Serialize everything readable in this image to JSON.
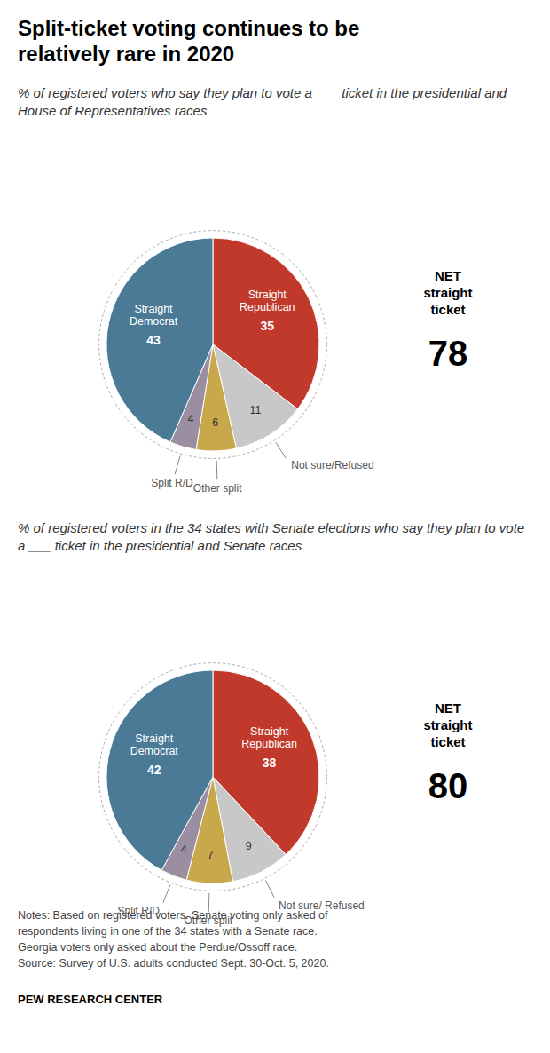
{
  "title": "Split-ticket voting continues to be\nrelatively rare in 2020",
  "chart_data": [
    {
      "type": "pie",
      "subtitle": "% of registered voters who say they plan to vote a ___ ticket in the presidential and House of Representatives races",
      "categories": [
        "Straight Republican",
        "Not sure/Refused",
        "Other split",
        "Split R/D",
        "Straight Democrat"
      ],
      "values": [
        35,
        11,
        6,
        4,
        43
      ],
      "colors": [
        "#c0392b",
        "#c8c8c8",
        "#c8a84b",
        "#9b8ea0",
        "#4a7a96"
      ],
      "data_labels": true,
      "annotations": [
        "NET\nstraight\nticket",
        "78"
      ]
    },
    {
      "type": "pie",
      "subtitle": "% of registered voters in the 34 states with Senate elections who say they plan to vote a ___ ticket in the presidential and Senate races",
      "categories": [
        "Straight Republican",
        "Not sure/ Refused",
        "Other split",
        "Split R/D",
        "Straight Democrat"
      ],
      "values": [
        38,
        9,
        7,
        4,
        42
      ],
      "colors": [
        "#c0392b",
        "#c8c8c8",
        "#c8a84b",
        "#9b8ea0",
        "#4a7a96"
      ],
      "data_labels": true,
      "annotations": [
        "NET\nstraight\nticket",
        "80"
      ]
    }
  ],
  "notes": [
    "Notes: Based on registered voters. Senate voting only asked of",
    "respondents living in one of the 34 states with a Senate race.",
    "Georgia voters only asked about the Perdue/Ossoff race.",
    "Source: Survey of U.S. adults conducted Sept. 30-Oct. 5, 2020."
  ],
  "source": "PEW RESEARCH CENTER"
}
